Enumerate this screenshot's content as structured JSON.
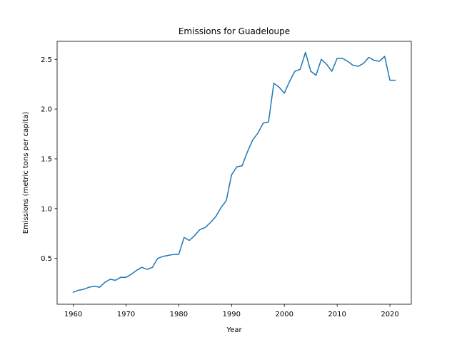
{
  "chart_data": {
    "type": "line",
    "title": "Emissions for Guadeloupe",
    "xlabel": "Year",
    "ylabel": "Emissions (metric tons per capita)",
    "xlim": [
      1956.95,
      2024.05
    ],
    "ylim": [
      0.0394,
      2.6809
    ],
    "xticks": [
      1960,
      1970,
      1980,
      1990,
      2000,
      2010,
      2020
    ],
    "yticks": [
      0.5,
      1.0,
      1.5,
      2.0,
      2.5
    ],
    "ytick_labels": [
      "0.5",
      "1.0",
      "1.5",
      "2.0",
      "2.5"
    ],
    "grid": false,
    "line_color": "#1f77b4",
    "series": [
      {
        "x": [
          1960,
          1961,
          1962,
          1963,
          1964,
          1965,
          1966,
          1967,
          1968,
          1969,
          1970,
          1971,
          1972,
          1973,
          1974,
          1975,
          1976,
          1977,
          1978,
          1979,
          1980,
          1981,
          1982,
          1983,
          1984,
          1985,
          1986,
          1987,
          1988,
          1989,
          1990,
          1991,
          1992,
          1993,
          1994,
          1995,
          1996,
          1997,
          1998,
          1999,
          2000,
          2001,
          2002,
          2003,
          2004,
          2005,
          2006,
          2007,
          2008,
          2009,
          2010,
          2011,
          2012,
          2013,
          2014,
          2015,
          2016,
          2017,
          2018,
          2019,
          2020,
          2021
        ],
        "y": [
          0.16,
          0.18,
          0.19,
          0.21,
          0.22,
          0.21,
          0.26,
          0.29,
          0.28,
          0.31,
          0.31,
          0.34,
          0.38,
          0.41,
          0.39,
          0.41,
          0.5,
          0.52,
          0.53,
          0.54,
          0.54,
          0.71,
          0.68,
          0.73,
          0.79,
          0.81,
          0.86,
          0.92,
          1.01,
          1.08,
          1.34,
          1.42,
          1.43,
          1.57,
          1.69,
          1.76,
          1.86,
          1.87,
          2.26,
          2.22,
          2.16,
          2.28,
          2.38,
          2.4,
          2.57,
          2.38,
          2.34,
          2.5,
          2.45,
          2.38,
          2.51,
          2.51,
          2.48,
          2.44,
          2.43,
          2.46,
          2.52,
          2.49,
          2.48,
          2.53,
          2.29,
          2.29
        ]
      }
    ]
  }
}
